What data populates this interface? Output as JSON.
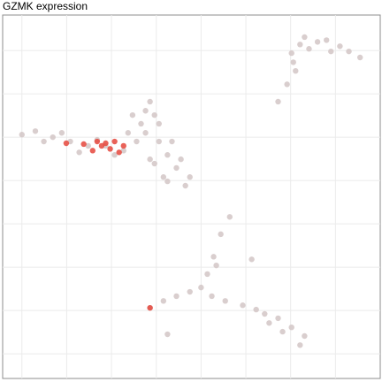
{
  "chart_data": {
    "type": "scatter",
    "title": "GZMK expression",
    "xlim": [
      -4.43,
      4.0
    ],
    "ylim": [
      -0.57,
      7.82
    ],
    "xticks": [
      -4,
      -3,
      -2,
      -1,
      0,
      1,
      2,
      3
    ],
    "yticks": [
      0,
      1,
      2,
      3,
      4,
      5,
      6,
      7
    ],
    "grid": true,
    "series": [
      {
        "color": "#d2c6c6",
        "x": [
          2.02,
          2.31,
          2.8,
          3.3,
          3.55,
          2.11,
          1.92,
          1.72,
          2.21,
          2.6,
          3.1,
          2.41,
          2.9,
          2.06,
          -4.0,
          -3.7,
          -3.31,
          -2.92,
          -2.52,
          -2.13,
          -1.73,
          -3.51,
          -3.11,
          -2.72,
          -2.32,
          -1.93,
          -1.14,
          -1.04,
          -1.24,
          -0.94,
          -0.75,
          -0.55,
          -0.25,
          -0.84,
          -1.14,
          -1.34,
          -1.53,
          -1.44,
          -1.04,
          -0.65,
          -0.45,
          -0.94,
          -1.24,
          -1.63,
          -0.35,
          -0.75,
          0.64,
          0.44,
          0.28,
          0.14,
          0.0,
          -0.25,
          -0.55,
          -0.84,
          -1.14,
          0.24,
          0.54,
          0.93,
          1.23,
          1.42,
          1.72,
          2.02,
          2.31,
          2.21,
          1.82,
          1.52,
          1.13,
          -0.75,
          0.34
        ],
        "y": [
          6.94,
          7.31,
          7.24,
          6.98,
          6.84,
          6.53,
          6.22,
          5.82,
          7.14,
          7.2,
          7.1,
          7.04,
          6.98,
          6.73,
          5.06,
          5.14,
          5.0,
          4.9,
          4.8,
          4.8,
          4.69,
          4.9,
          5.1,
          4.65,
          4.94,
          4.59,
          5.82,
          5.51,
          5.1,
          4.9,
          4.59,
          4.29,
          4.08,
          4.08,
          4.49,
          5.31,
          5.51,
          4.9,
          4.39,
          4.9,
          4.49,
          5.31,
          5.61,
          5.1,
          3.88,
          3.98,
          3.16,
          2.76,
          2.24,
          1.84,
          1.53,
          1.43,
          1.33,
          1.22,
          1.06,
          1.33,
          1.22,
          1.12,
          1.02,
          0.92,
          0.82,
          0.61,
          0.41,
          0.2,
          0.51,
          0.71,
          2.18,
          0.45,
          2.04
        ]
      },
      {
        "color": "#e5463c",
        "x": [
          -2.32,
          -2.22,
          -2.13,
          -2.03,
          -1.93,
          -2.42,
          -2.62,
          -1.83,
          -1.73,
          -3.01,
          -1.14
        ],
        "y": [
          4.9,
          4.8,
          4.86,
          4.73,
          4.9,
          4.69,
          4.84,
          4.65,
          4.8,
          4.86,
          1.06
        ]
      }
    ]
  }
}
